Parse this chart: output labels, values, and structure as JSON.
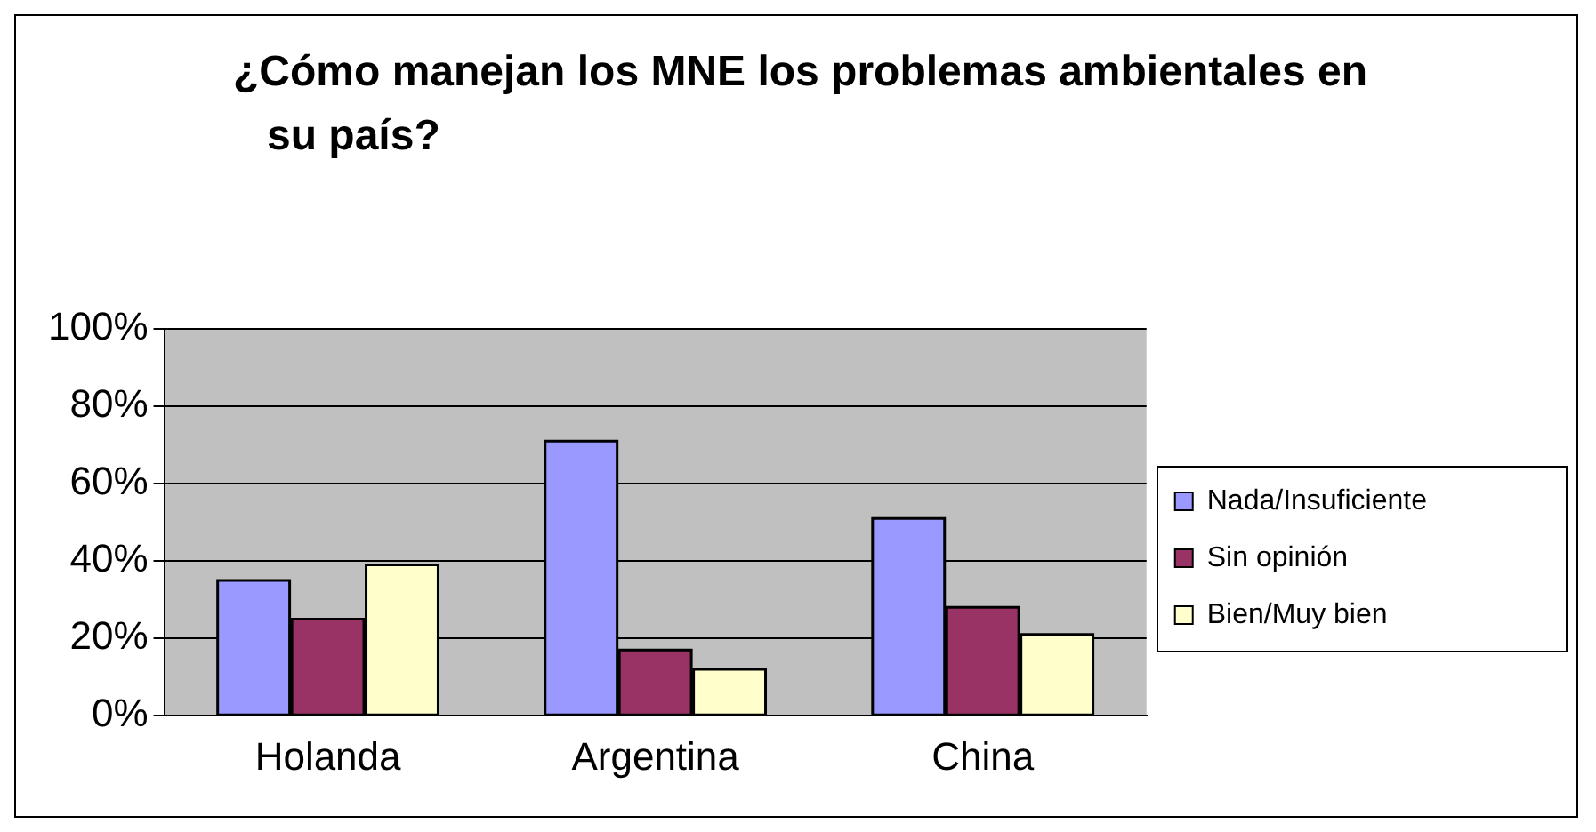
{
  "chart_data": {
    "type": "bar",
    "title": "¿Cómo manejan los MNE los problemas ambientales en su país?",
    "categories": [
      "Holanda",
      "Argentina",
      "China"
    ],
    "series": [
      {
        "name": "Nada/Insuficiente",
        "color": "#9999ff",
        "values": [
          35,
          71,
          51
        ]
      },
      {
        "name": "Sin opinión",
        "color": "#993366",
        "values": [
          25,
          17,
          28
        ]
      },
      {
        "name": "Bien/Muy bien",
        "color": "#ffffcc",
        "values": [
          39,
          12,
          21
        ]
      }
    ],
    "ylim": [
      0,
      100
    ],
    "yticks": [
      {
        "value": 0,
        "label": "0%"
      },
      {
        "value": 20,
        "label": "20%"
      },
      {
        "value": 40,
        "label": "40%"
      },
      {
        "value": 60,
        "label": "60%"
      },
      {
        "value": 80,
        "label": "80%"
      },
      {
        "value": 100,
        "label": "100%"
      }
    ],
    "grid": "y",
    "legend": "right"
  }
}
